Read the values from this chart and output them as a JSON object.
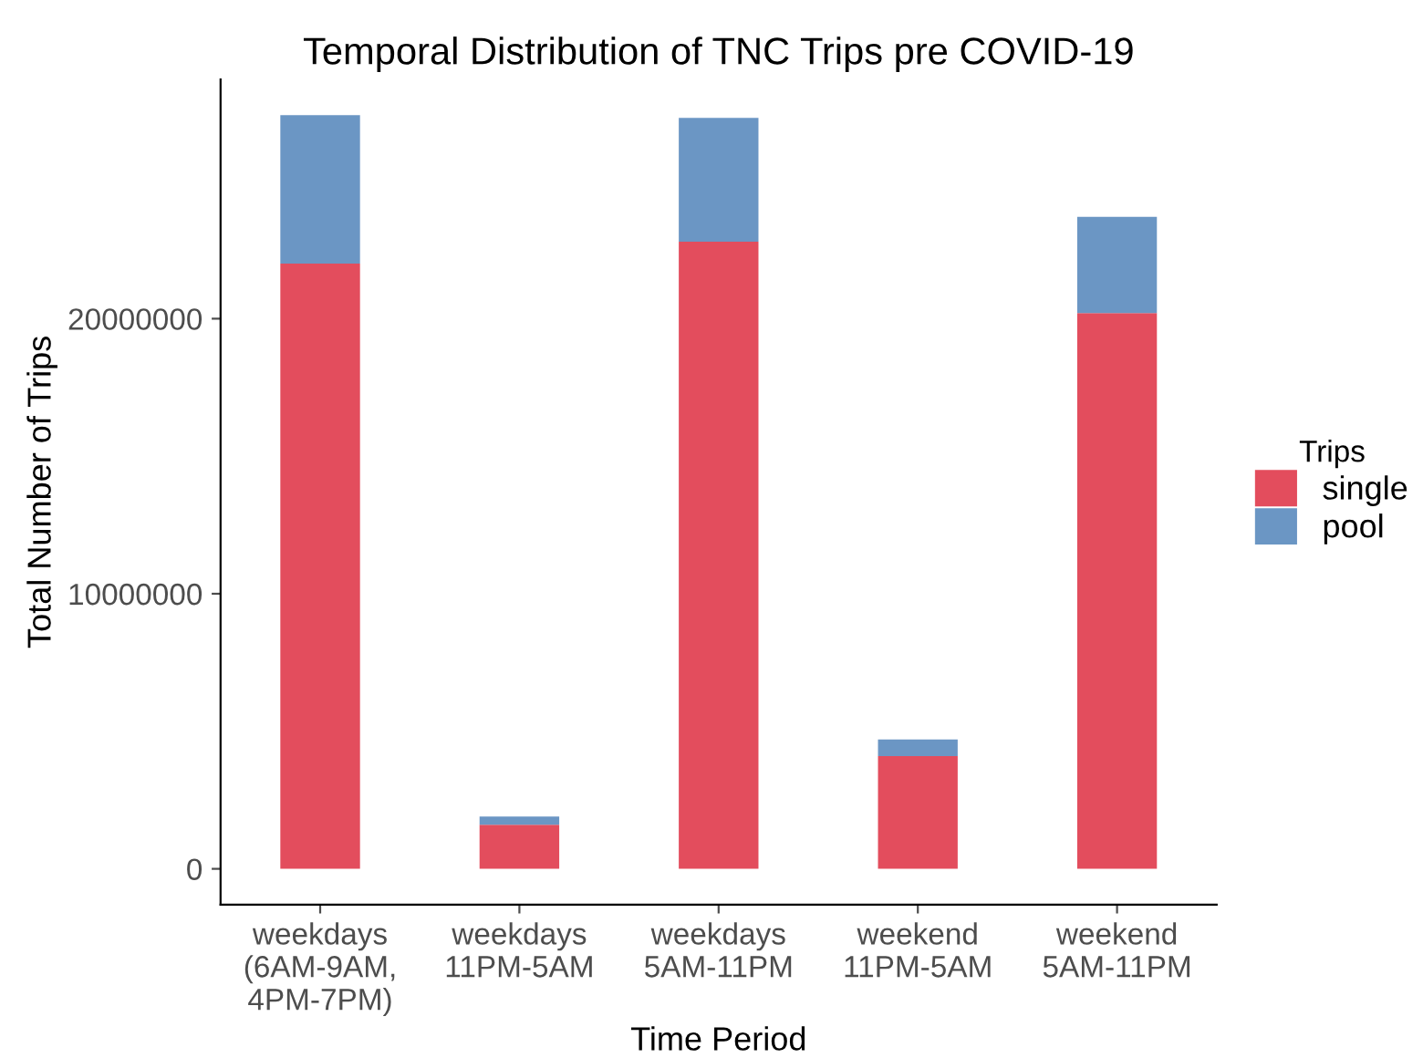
{
  "chart_data": {
    "type": "bar",
    "title": "Temporal Distribution of TNC Trips pre COVID-19",
    "xlabel": "Time Period",
    "ylabel": "Total Number of Trips",
    "legend_title": "Trips",
    "categories": [
      "weekdays\n(6AM-9AM,\n4PM-7PM)",
      "weekdays\n11PM-5AM",
      "weekdays\n5AM-11PM",
      "weekend\n11PM-5AM",
      "weekend\n5AM-11PM"
    ],
    "series": [
      {
        "name": "single",
        "color": "#e34d5d",
        "values": [
          22000000,
          1600000,
          22800000,
          4100000,
          20200000
        ]
      },
      {
        "name": "pool",
        "color": "#6b96c4",
        "values": [
          5400000,
          300000,
          4500000,
          600000,
          3500000
        ]
      }
    ],
    "stacked": true,
    "ylim": [
      -1300000,
      28700000
    ],
    "yticks": [
      0,
      10000000,
      20000000
    ],
    "grid": false,
    "legend": "right"
  }
}
